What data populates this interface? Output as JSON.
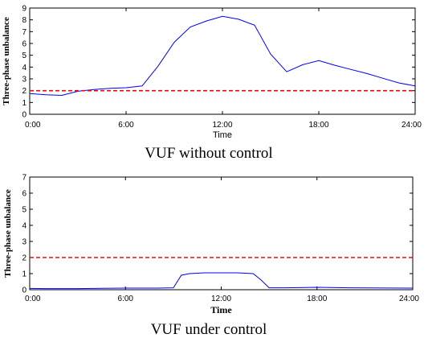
{
  "chart_data": [
    {
      "type": "line",
      "caption": "VUF without control",
      "xlabel": "Time",
      "ylabel": "Three-phase unbalance",
      "xlim": [
        0,
        24
      ],
      "ylim": [
        0,
        9
      ],
      "xticks": [
        0,
        6,
        12,
        18,
        24
      ],
      "xtick_labels": [
        "0:00",
        "6:00",
        "12:00",
        "18:00",
        "24:00"
      ],
      "yticks": [
        0,
        1,
        2,
        3,
        4,
        5,
        6,
        7,
        8,
        9
      ],
      "ytick_labels": [
        "0",
        "1",
        "2",
        "3",
        "4",
        "5",
        "6",
        "7",
        "8",
        "9"
      ],
      "grid": false,
      "series": [
        {
          "color": "#0000ff",
          "style": "solid",
          "x": [
            0,
            1,
            2,
            3,
            4,
            5,
            6,
            7,
            8,
            9,
            10,
            11,
            12,
            13,
            14,
            15,
            16,
            17,
            18,
            19,
            20,
            21,
            22,
            23,
            24
          ],
          "values": [
            1.75,
            1.65,
            1.6,
            1.95,
            2.1,
            2.2,
            2.25,
            2.4,
            4.1,
            6.1,
            7.4,
            7.9,
            8.3,
            8.05,
            7.55,
            5.1,
            3.6,
            4.2,
            4.55,
            4.15,
            3.8,
            3.45,
            3.05,
            2.65,
            2.4
          ]
        },
        {
          "color": "#ff0000",
          "style": "dashed",
          "x": [
            0,
            24
          ],
          "values": [
            2,
            2
          ]
        }
      ]
    },
    {
      "type": "line",
      "caption": "VUF under control",
      "xlabel": "Time",
      "ylabel": "Three-phase unbalance",
      "xlim": [
        0,
        24
      ],
      "ylim": [
        0,
        7
      ],
      "xticks": [
        0,
        6,
        12,
        18,
        24
      ],
      "xtick_labels": [
        "0:00",
        "6:00",
        "12:00",
        "18:00",
        "24:00"
      ],
      "yticks": [
        0,
        1,
        2,
        3,
        4,
        5,
        6,
        7
      ],
      "ytick_labels": [
        "0",
        "1",
        "2",
        "3",
        "4",
        "5",
        "6",
        "7"
      ],
      "grid": false,
      "series": [
        {
          "color": "#0000ff",
          "style": "solid",
          "x": [
            0,
            1,
            3,
            6,
            8,
            9,
            9.5,
            10,
            11,
            12,
            13,
            14,
            14.5,
            15,
            16,
            18,
            20,
            24
          ],
          "values": [
            0.08,
            0.07,
            0.07,
            0.1,
            0.1,
            0.12,
            0.9,
            1.0,
            1.05,
            1.05,
            1.05,
            1.0,
            0.6,
            0.12,
            0.12,
            0.15,
            0.12,
            0.1
          ]
        },
        {
          "color": "#ff0000",
          "style": "dashed",
          "x": [
            0,
            24
          ],
          "values": [
            2,
            2
          ]
        }
      ]
    }
  ]
}
